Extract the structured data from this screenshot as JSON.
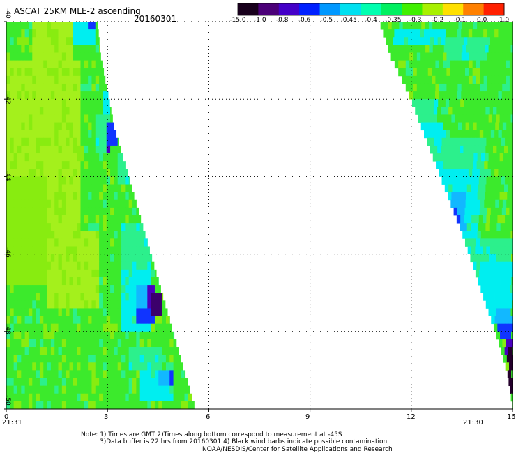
{
  "header": {
    "title": "ASCAT 25KM MLE-2 ascending",
    "date": "20160301"
  },
  "colorbar": {
    "labels": [
      "-15.0",
      "-1.0",
      "-0.8",
      "-0.6",
      "-0.5",
      "-0.45",
      "-0.4",
      "-0.35",
      "-0.3",
      "-0.2",
      "-0.1",
      "0.0",
      "1.0"
    ],
    "colors": [
      "#18001c",
      "#4b0078",
      "#4400c8",
      "#0020ff",
      "#0098ff",
      "#00e0f0",
      "#00ffb0",
      "#00f060",
      "#40f000",
      "#a8f000",
      "#ffe000",
      "#ff8000",
      "#ff2000"
    ]
  },
  "axes": {
    "y_labels": [
      "-40",
      "-42",
      "-44",
      "-46",
      "-48",
      "-50"
    ],
    "x_labels": [
      "0",
      "3",
      "6",
      "9",
      "12",
      "15"
    ],
    "time_left": "21:31",
    "time_right": "21:30",
    "x_range": [
      0,
      15
    ],
    "y_range": [
      -40,
      -50
    ]
  },
  "notes": {
    "line1": "Note: 1) Times are GMT 2)Times along bottom correspond to measurement at -45S",
    "line2": "3)Data buffer is 22 hrs from 20160301 4) Black wind barbs indicate possible contamination",
    "line3": "NOAA/NESDIS/Center for Satellite Applications and Research"
  },
  "palette": {
    "greenyellow": "#a4f01c",
    "yellowgreen": "#88ec10",
    "green": "#3cea2c",
    "spring": "#2cf08c",
    "cyan": "#00eef0",
    "skyblue": "#12b8ff",
    "blue": "#1034ff",
    "indigo": "#4a00c0",
    "purple": "#3c006c",
    "darkpurple": "#24002c",
    "grid": "#000000",
    "time_label": "#cc0000"
  },
  "swaths": [
    {
      "name": "left-swath",
      "lon_west": 0.0,
      "lat_north": -40.0,
      "lat_south": -50.0,
      "east_edge_lon": [
        2.7,
        2.8,
        3.0,
        3.2,
        3.5,
        3.8,
        4.1,
        4.4,
        4.7,
        5.0,
        5.3,
        5.6
      ],
      "patches": [
        {
          "lon": [
            0.0,
            0.8
          ],
          "lat": [
            -40.0,
            -41.5
          ],
          "color": "green"
        },
        {
          "lon": [
            0.8,
            2.0
          ],
          "lat": [
            -40.0,
            -41.0
          ],
          "color": "greenyellow"
        },
        {
          "lon": [
            2.0,
            2.6
          ],
          "lat": [
            -40.0,
            -40.7
          ],
          "color": "cyan"
        },
        {
          "lon": [
            2.4,
            2.6
          ],
          "lat": [
            -40.0,
            -40.2
          ],
          "color": "blue"
        },
        {
          "lon": [
            0.0,
            2.2
          ],
          "lat": [
            -41.0,
            -45.5
          ],
          "color": "greenyellow"
        },
        {
          "lon": [
            0.0,
            1.2
          ],
          "lat": [
            -44.0,
            -46.8
          ],
          "color": "yellowgreen"
        },
        {
          "lon": [
            2.2,
            2.9
          ],
          "lat": [
            -41.5,
            -42.6
          ],
          "color": "green"
        },
        {
          "lon": [
            2.9,
            3.1
          ],
          "lat": [
            -41.8,
            -42.4
          ],
          "color": "cyan"
        },
        {
          "lon": [
            2.6,
            3.1
          ],
          "lat": [
            -42.4,
            -43.5
          ],
          "color": "spring"
        },
        {
          "lon": [
            3.0,
            3.3
          ],
          "lat": [
            -42.7,
            -43.2
          ],
          "color": "blue"
        },
        {
          "lon": [
            3.0,
            3.1
          ],
          "lat": [
            -43.2,
            -43.4
          ],
          "color": "indigo"
        },
        {
          "lon": [
            2.2,
            3.6
          ],
          "lat": [
            -43.5,
            -45.0
          ],
          "color": "green"
        },
        {
          "lon": [
            3.3,
            3.7
          ],
          "lat": [
            -43.5,
            -44.2
          ],
          "color": "spring"
        },
        {
          "lon": [
            1.2,
            2.8
          ],
          "lat": [
            -45.5,
            -47.5
          ],
          "color": "greenyellow"
        },
        {
          "lon": [
            2.8,
            3.8
          ],
          "lat": [
            -45.0,
            -46.8
          ],
          "color": "green"
        },
        {
          "lon": [
            3.4,
            4.3
          ],
          "lat": [
            -45.2,
            -46.5
          ],
          "color": "spring"
        },
        {
          "lon": [
            3.4,
            4.3
          ],
          "lat": [
            -46.5,
            -48.0
          ],
          "color": "cyan"
        },
        {
          "lon": [
            3.9,
            4.4
          ],
          "lat": [
            -46.8,
            -47.4
          ],
          "color": "skyblue"
        },
        {
          "lon": [
            3.8,
            4.4
          ],
          "lat": [
            -47.4,
            -47.8
          ],
          "color": "blue"
        },
        {
          "lon": [
            4.2,
            4.4
          ],
          "lat": [
            -46.8,
            -47.4
          ],
          "color": "indigo"
        },
        {
          "lon": [
            4.3,
            4.6
          ],
          "lat": [
            -47.0,
            -47.6
          ],
          "color": "purple"
        },
        {
          "lon": [
            0.0,
            2.8
          ],
          "lat": [
            -47.5,
            -50.0
          ],
          "color": "green"
        },
        {
          "lon": [
            2.8,
            4.0
          ],
          "lat": [
            -48.0,
            -50.0
          ],
          "color": "green"
        },
        {
          "lon": [
            3.6,
            4.6
          ],
          "lat": [
            -48.4,
            -49.0
          ],
          "color": "spring"
        },
        {
          "lon": [
            4.0,
            5.0
          ],
          "lat": [
            -49.0,
            -49.8
          ],
          "color": "cyan"
        },
        {
          "lon": [
            4.5,
            5.0
          ],
          "lat": [
            -49.0,
            -49.5
          ],
          "color": "skyblue"
        },
        {
          "lon": [
            4.8,
            5.0
          ],
          "lat": [
            -49.0,
            -49.4
          ],
          "color": "blue"
        }
      ]
    },
    {
      "name": "right-swath",
      "lon_east": 15.0,
      "lat_north": -40.0,
      "lat_south": -50.0,
      "west_edge_lon": [
        11.05,
        11.4,
        11.9,
        12.3,
        12.7,
        13.1,
        13.5,
        13.85,
        14.2,
        14.55,
        14.85,
        15.0
      ],
      "patches": [
        {
          "lon": [
            11.0,
            15.0
          ],
          "lat": [
            -40.0,
            -41.0
          ],
          "color": "green"
        },
        {
          "lon": [
            11.5,
            13.0
          ],
          "lat": [
            -40.2,
            -40.6
          ],
          "color": "cyan"
        },
        {
          "lon": [
            13.0,
            14.3
          ],
          "lat": [
            -40.4,
            -41.2
          ],
          "color": "spring"
        },
        {
          "lon": [
            11.4,
            15.0
          ],
          "lat": [
            -41.0,
            -43.0
          ],
          "color": "green"
        },
        {
          "lon": [
            12.0,
            12.8
          ],
          "lat": [
            -42.0,
            -43.0
          ],
          "color": "spring"
        },
        {
          "lon": [
            12.2,
            13.0
          ],
          "lat": [
            -42.6,
            -43.6
          ],
          "color": "cyan"
        },
        {
          "lon": [
            12.5,
            14.2
          ],
          "lat": [
            -43.0,
            -45.0
          ],
          "color": "spring"
        },
        {
          "lon": [
            12.8,
            14.0
          ],
          "lat": [
            -43.8,
            -45.6
          ],
          "color": "cyan"
        },
        {
          "lon": [
            13.2,
            13.6
          ],
          "lat": [
            -44.4,
            -45.4
          ],
          "color": "skyblue"
        },
        {
          "lon": [
            13.1,
            13.4
          ],
          "lat": [
            -44.8,
            -45.4
          ],
          "color": "blue"
        },
        {
          "lon": [
            14.2,
            15.0
          ],
          "lat": [
            -43.0,
            -46.5
          ],
          "color": "green"
        },
        {
          "lon": [
            13.5,
            15.0
          ],
          "lat": [
            -45.6,
            -47.0
          ],
          "color": "spring"
        },
        {
          "lon": [
            14.0,
            15.0
          ],
          "lat": [
            -46.2,
            -47.2
          ],
          "color": "cyan"
        },
        {
          "lon": [
            14.2,
            15.0
          ],
          "lat": [
            -47.0,
            -47.8
          ],
          "color": "cyan"
        },
        {
          "lon": [
            14.5,
            15.0
          ],
          "lat": [
            -47.4,
            -48.0
          ],
          "color": "skyblue"
        },
        {
          "lon": [
            14.6,
            15.0
          ],
          "lat": [
            -47.8,
            -48.3
          ],
          "color": "blue"
        },
        {
          "lon": [
            14.8,
            15.0
          ],
          "lat": [
            -48.2,
            -48.6
          ],
          "color": "indigo"
        },
        {
          "lon": [
            14.85,
            15.0
          ],
          "lat": [
            -48.4,
            -50.0
          ],
          "color": "darkpurple"
        }
      ]
    }
  ]
}
